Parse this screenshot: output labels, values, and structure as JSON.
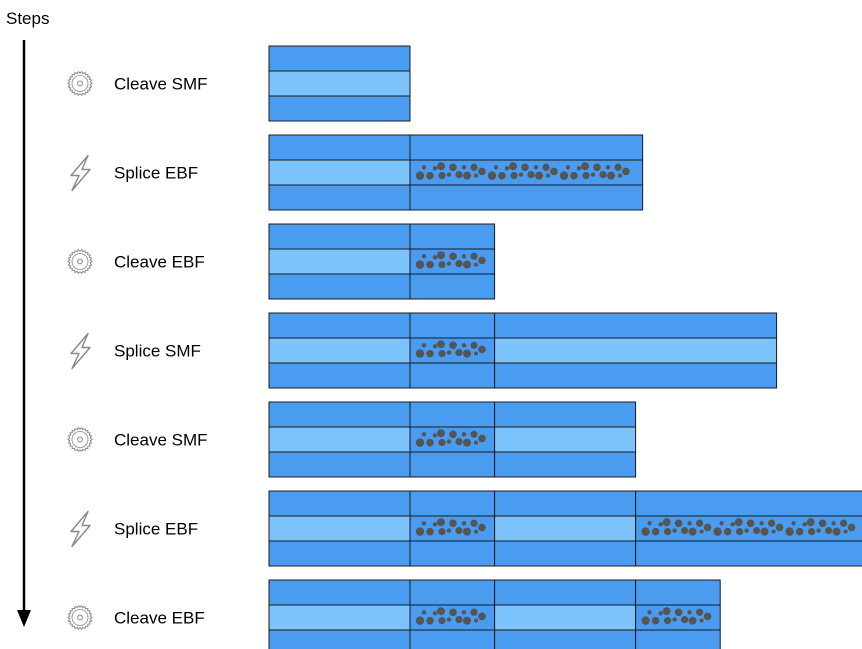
{
  "axis": {
    "label": "Steps"
  },
  "colors": {
    "cladding": "#4a9cf0",
    "core": "#7cc2fb",
    "outline": "#1a1a1a",
    "dots": "#555555",
    "arrow": "#000000",
    "icon": "#888888"
  },
  "steps": [
    {
      "label": "Cleave SMF",
      "icon": "cleave-blade-icon",
      "segments": [
        {
          "type": "SMF",
          "length": 1
        }
      ]
    },
    {
      "label": "Splice EBF",
      "icon": "lightning-bolt-icon",
      "segments": [
        {
          "type": "SMF",
          "length": 1
        },
        {
          "type": "EBF",
          "length": 1.65
        }
      ]
    },
    {
      "label": "Cleave EBF",
      "icon": "cleave-blade-icon",
      "segments": [
        {
          "type": "SMF",
          "length": 1
        },
        {
          "type": "EBF",
          "length": 0.6
        }
      ]
    },
    {
      "label": "Splice SMF",
      "icon": "lightning-bolt-icon",
      "segments": [
        {
          "type": "SMF",
          "length": 1
        },
        {
          "type": "EBF",
          "length": 0.6
        },
        {
          "type": "SMF",
          "length": 2
        }
      ]
    },
    {
      "label": "Cleave SMF",
      "icon": "cleave-blade-icon",
      "segments": [
        {
          "type": "SMF",
          "length": 1
        },
        {
          "type": "EBF",
          "length": 0.6
        },
        {
          "type": "SMF",
          "length": 1
        }
      ]
    },
    {
      "label": "Splice EBF",
      "icon": "lightning-bolt-icon",
      "segments": [
        {
          "type": "SMF",
          "length": 1
        },
        {
          "type": "EBF",
          "length": 0.6
        },
        {
          "type": "SMF",
          "length": 1
        },
        {
          "type": "EBF",
          "length": 1.65
        }
      ]
    },
    {
      "label": "Cleave EBF",
      "icon": "cleave-blade-icon",
      "segments": [
        {
          "type": "SMF",
          "length": 1
        },
        {
          "type": "EBF",
          "length": 0.6
        },
        {
          "type": "SMF",
          "length": 1
        },
        {
          "type": "EBF",
          "length": 0.6
        }
      ]
    }
  ]
}
